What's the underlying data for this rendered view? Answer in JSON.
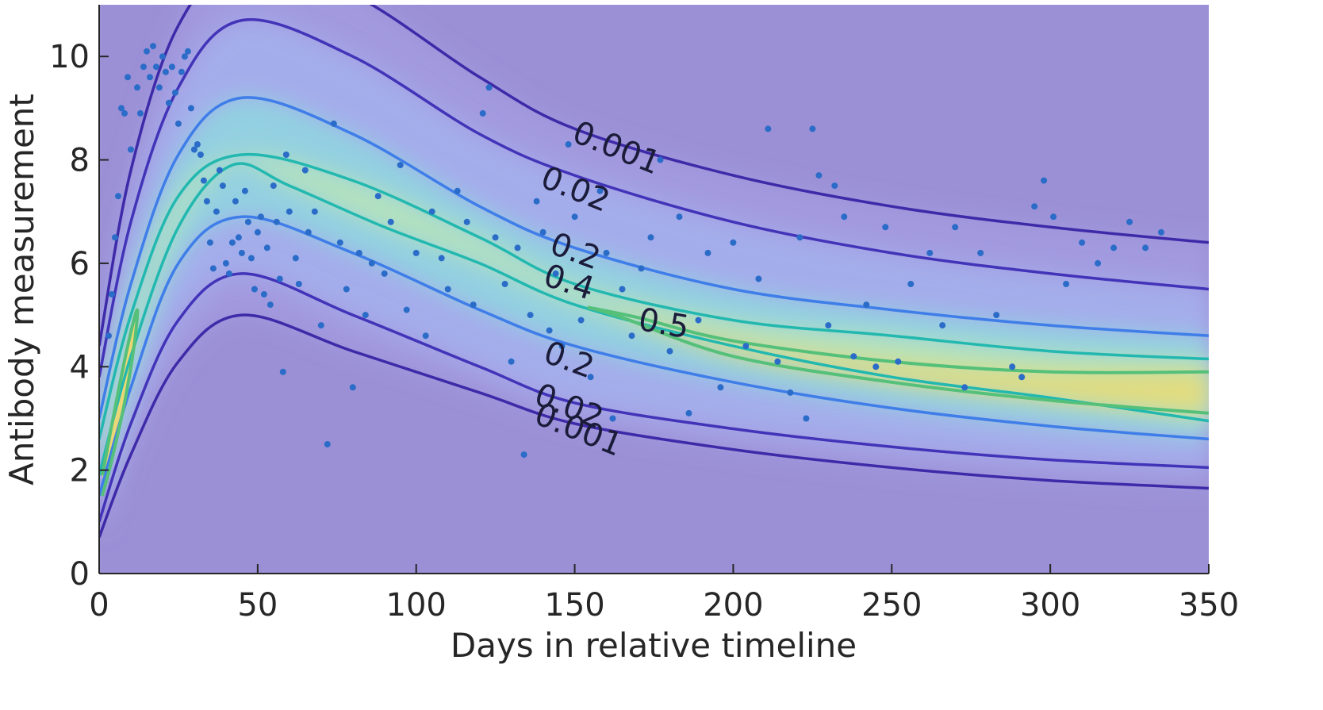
{
  "chart_data": {
    "type": "scatter",
    "xlabel": "Days in relative timeline",
    "ylabel": "Antibody measurement",
    "xlim": [
      0,
      350
    ],
    "ylim": [
      0,
      11
    ],
    "x_ticks": [
      0,
      50,
      100,
      150,
      200,
      250,
      300,
      350
    ],
    "y_ticks": [
      0,
      2,
      4,
      6,
      8,
      10
    ],
    "grid": false,
    "legend": "none",
    "colors": {
      "background": "#9b90d6",
      "contour_0.001": "#3e2aa8",
      "contour_0.02": "#4233b8",
      "contour_0.2": "#3f7de8",
      "contour_0.4": "#22b8b0",
      "contour_0.5": "#55c07a",
      "points": "#2a6cc8",
      "density_peak": "#f2d86a"
    },
    "contours": [
      {
        "level": "0.001",
        "points": [
          [
            0,
            4.4
          ],
          [
            10,
            7.8
          ],
          [
            25,
            10.6
          ],
          [
            45,
            11.8
          ],
          [
            80,
            11.2
          ],
          [
            120,
            9.6
          ],
          [
            150,
            8.6
          ],
          [
            200,
            7.7
          ],
          [
            250,
            7.1
          ],
          [
            300,
            6.7
          ],
          [
            350,
            6.4
          ]
        ]
      },
      {
        "level": "0.02",
        "points": [
          [
            0,
            3.8
          ],
          [
            10,
            6.8
          ],
          [
            25,
            9.4
          ],
          [
            45,
            10.7
          ],
          [
            80,
            10.0
          ],
          [
            120,
            8.5
          ],
          [
            150,
            7.7
          ],
          [
            200,
            6.8
          ],
          [
            250,
            6.2
          ],
          [
            300,
            5.8
          ],
          [
            350,
            5.5
          ]
        ]
      },
      {
        "level": "0.2",
        "points": [
          [
            0,
            3.0
          ],
          [
            10,
            5.6
          ],
          [
            25,
            8.1
          ],
          [
            45,
            9.2
          ],
          [
            80,
            8.5
          ],
          [
            120,
            7.1
          ],
          [
            150,
            6.3
          ],
          [
            200,
            5.5
          ],
          [
            250,
            5.1
          ],
          [
            300,
            4.8
          ],
          [
            350,
            4.6
          ]
        ]
      },
      {
        "level": "0.4",
        "points": [
          [
            0,
            2.6
          ],
          [
            10,
            5.0
          ],
          [
            25,
            7.3
          ],
          [
            45,
            8.1
          ],
          [
            80,
            7.6
          ],
          [
            120,
            6.5
          ],
          [
            150,
            5.6
          ],
          [
            200,
            4.9
          ],
          [
            250,
            4.6
          ],
          [
            300,
            4.3
          ],
          [
            350,
            4.15
          ]
        ]
      },
      {
        "level": "0.4",
        "points": [
          [
            0,
            1.9
          ],
          [
            10,
            4.2
          ],
          [
            25,
            6.7
          ],
          [
            42,
            7.9
          ],
          [
            60,
            7.5
          ],
          [
            90,
            6.7
          ],
          [
            120,
            6.0
          ],
          [
            150,
            5.2
          ],
          [
            200,
            4.4
          ],
          [
            250,
            3.8
          ],
          [
            300,
            3.4
          ],
          [
            350,
            2.95
          ]
        ]
      },
      {
        "level": "0.2",
        "points": [
          [
            0,
            1.5
          ],
          [
            10,
            3.6
          ],
          [
            25,
            6.0
          ],
          [
            45,
            6.9
          ],
          [
            80,
            6.2
          ],
          [
            120,
            5.1
          ],
          [
            150,
            4.4
          ],
          [
            200,
            3.7
          ],
          [
            250,
            3.2
          ],
          [
            300,
            2.85
          ],
          [
            350,
            2.6
          ]
        ]
      },
      {
        "level": "0.02",
        "points": [
          [
            0,
            1.0
          ],
          [
            10,
            2.9
          ],
          [
            25,
            4.9
          ],
          [
            45,
            5.8
          ],
          [
            80,
            5.0
          ],
          [
            120,
            4.0
          ],
          [
            150,
            3.3
          ],
          [
            200,
            2.8
          ],
          [
            250,
            2.45
          ],
          [
            300,
            2.2
          ],
          [
            350,
            2.05
          ]
        ]
      },
      {
        "level": "0.001",
        "points": [
          [
            0,
            0.7
          ],
          [
            10,
            2.3
          ],
          [
            25,
            4.1
          ],
          [
            45,
            5.0
          ],
          [
            80,
            4.3
          ],
          [
            120,
            3.5
          ],
          [
            150,
            2.9
          ],
          [
            200,
            2.4
          ],
          [
            250,
            2.05
          ],
          [
            300,
            1.8
          ],
          [
            350,
            1.65
          ]
        ]
      },
      {
        "level": "0.5",
        "points": [
          [
            154,
            5.15
          ],
          [
            170,
            4.95
          ],
          [
            200,
            4.5
          ],
          [
            250,
            4.1
          ],
          [
            300,
            3.9
          ],
          [
            350,
            3.9
          ]
        ]
      },
      {
        "level": "0.5",
        "points": [
          [
            154,
            5.15
          ],
          [
            165,
            4.95
          ],
          [
            200,
            4.2
          ],
          [
            250,
            3.7
          ],
          [
            300,
            3.35
          ],
          [
            350,
            3.1
          ]
        ]
      },
      {
        "level": "0.5",
        "points": [
          [
            1,
            1.9
          ],
          [
            5,
            3.2
          ],
          [
            9,
            4.4
          ],
          [
            12,
            5.1
          ],
          [
            11,
            4.4
          ],
          [
            8,
            3.3
          ],
          [
            4,
            2.2
          ],
          [
            1,
            1.5
          ]
        ]
      }
    ],
    "contour_labels": [
      {
        "text": "0.001",
        "x": 163,
        "y": 8.2,
        "angle": 22
      },
      {
        "text": "0.02",
        "x": 150,
        "y": 7.4,
        "angle": 22
      },
      {
        "text": "0.2",
        "x": 150,
        "y": 6.2,
        "angle": 20
      },
      {
        "text": "0.4",
        "x": 148,
        "y": 5.6,
        "angle": 18
      },
      {
        "text": "0.5",
        "x": 178,
        "y": 4.8,
        "angle": 10
      },
      {
        "text": "0.2",
        "x": 148,
        "y": 4.1,
        "angle": 20
      },
      {
        "text": "0.02",
        "x": 148,
        "y": 3.2,
        "angle": 22
      },
      {
        "text": "0.001",
        "x": 151,
        "y": 2.75,
        "angle": 22
      }
    ],
    "points": [
      [
        3,
        4.6
      ],
      [
        4,
        5.4
      ],
      [
        5,
        6.5
      ],
      [
        6,
        7.3
      ],
      [
        7,
        9.0
      ],
      [
        8,
        8.9
      ],
      [
        9,
        9.6
      ],
      [
        10,
        8.2
      ],
      [
        12,
        9.4
      ],
      [
        13,
        8.9
      ],
      [
        14,
        9.8
      ],
      [
        15,
        10.1
      ],
      [
        16,
        9.6
      ],
      [
        17,
        10.2
      ],
      [
        18,
        9.8
      ],
      [
        19,
        9.4
      ],
      [
        20,
        10.0
      ],
      [
        21,
        9.7
      ],
      [
        22,
        9.1
      ],
      [
        23,
        9.8
      ],
      [
        24,
        9.3
      ],
      [
        25,
        8.7
      ],
      [
        26,
        9.7
      ],
      [
        27,
        10.0
      ],
      [
        28,
        10.1
      ],
      [
        29,
        9.0
      ],
      [
        30,
        8.2
      ],
      [
        31,
        8.3
      ],
      [
        32,
        8.1
      ],
      [
        33,
        7.6
      ],
      [
        34,
        7.2
      ],
      [
        35,
        6.4
      ],
      [
        36,
        5.9
      ],
      [
        37,
        7.0
      ],
      [
        38,
        7.8
      ],
      [
        39,
        7.5
      ],
      [
        40,
        6.0
      ],
      [
        41,
        5.8
      ],
      [
        42,
        6.4
      ],
      [
        43,
        7.2
      ],
      [
        44,
        6.5
      ],
      [
        45,
        6.2
      ],
      [
        46,
        7.4
      ],
      [
        47,
        6.8
      ],
      [
        48,
        6.1
      ],
      [
        49,
        5.5
      ],
      [
        50,
        6.6
      ],
      [
        51,
        6.9
      ],
      [
        52,
        5.4
      ],
      [
        53,
        6.3
      ],
      [
        54,
        5.2
      ],
      [
        55,
        7.5
      ],
      [
        56,
        6.8
      ],
      [
        57,
        5.7
      ],
      [
        58,
        3.9
      ],
      [
        59,
        8.1
      ],
      [
        60,
        7.0
      ],
      [
        62,
        6.1
      ],
      [
        63,
        5.6
      ],
      [
        65,
        7.8
      ],
      [
        66,
        6.6
      ],
      [
        68,
        7.0
      ],
      [
        70,
        4.8
      ],
      [
        72,
        2.5
      ],
      [
        74,
        8.7
      ],
      [
        76,
        6.4
      ],
      [
        78,
        5.5
      ],
      [
        80,
        3.6
      ],
      [
        82,
        6.2
      ],
      [
        84,
        5.0
      ],
      [
        86,
        6.0
      ],
      [
        88,
        7.3
      ],
      [
        90,
        5.8
      ],
      [
        92,
        6.8
      ],
      [
        95,
        7.9
      ],
      [
        97,
        5.1
      ],
      [
        100,
        6.2
      ],
      [
        103,
        4.6
      ],
      [
        105,
        7.0
      ],
      [
        108,
        6.1
      ],
      [
        110,
        5.5
      ],
      [
        113,
        7.4
      ],
      [
        116,
        6.8
      ],
      [
        118,
        5.2
      ],
      [
        121,
        8.9
      ],
      [
        123,
        9.4
      ],
      [
        125,
        6.5
      ],
      [
        128,
        5.6
      ],
      [
        130,
        4.1
      ],
      [
        132,
        6.3
      ],
      [
        134,
        2.3
      ],
      [
        136,
        5.0
      ],
      [
        138,
        7.2
      ],
      [
        140,
        6.6
      ],
      [
        142,
        4.7
      ],
      [
        144,
        5.8
      ],
      [
        146,
        4.4
      ],
      [
        148,
        8.3
      ],
      [
        150,
        6.9
      ],
      [
        152,
        4.9
      ],
      [
        155,
        3.8
      ],
      [
        158,
        7.4
      ],
      [
        160,
        6.2
      ],
      [
        162,
        3.0
      ],
      [
        165,
        5.5
      ],
      [
        168,
        4.6
      ],
      [
        171,
        5.9
      ],
      [
        174,
        6.5
      ],
      [
        177,
        8.0
      ],
      [
        180,
        4.3
      ],
      [
        183,
        6.9
      ],
      [
        186,
        3.1
      ],
      [
        189,
        4.9
      ],
      [
        192,
        6.2
      ],
      [
        196,
        3.6
      ],
      [
        200,
        6.4
      ],
      [
        204,
        4.4
      ],
      [
        208,
        5.7
      ],
      [
        211,
        8.6
      ],
      [
        214,
        4.1
      ],
      [
        218,
        3.5
      ],
      [
        221,
        6.5
      ],
      [
        223,
        3.0
      ],
      [
        225,
        8.6
      ],
      [
        227,
        7.7
      ],
      [
        230,
        4.8
      ],
      [
        232,
        7.5
      ],
      [
        235,
        6.9
      ],
      [
        238,
        4.2
      ],
      [
        242,
        5.2
      ],
      [
        245,
        4.0
      ],
      [
        248,
        6.7
      ],
      [
        252,
        4.1
      ],
      [
        256,
        5.6
      ],
      [
        262,
        6.2
      ],
      [
        266,
        4.8
      ],
      [
        270,
        6.7
      ],
      [
        273,
        3.6
      ],
      [
        278,
        6.2
      ],
      [
        283,
        5.0
      ],
      [
        288,
        4.0
      ],
      [
        291,
        3.8
      ],
      [
        295,
        7.1
      ],
      [
        298,
        7.6
      ],
      [
        301,
        6.9
      ],
      [
        305,
        5.6
      ],
      [
        310,
        6.4
      ],
      [
        315,
        6.0
      ],
      [
        320,
        6.3
      ],
      [
        325,
        6.8
      ],
      [
        330,
        6.3
      ],
      [
        335,
        6.6
      ]
    ]
  }
}
